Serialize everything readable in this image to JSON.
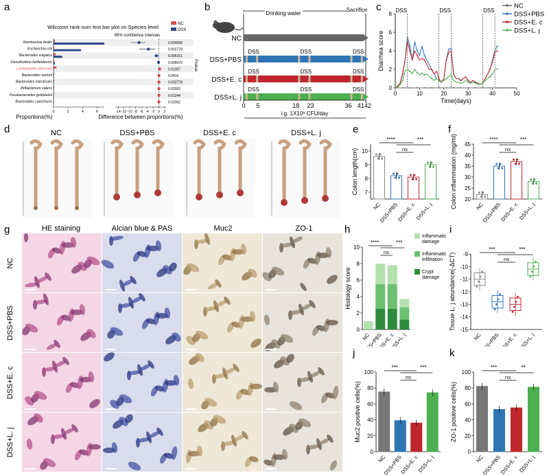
{
  "panel_letters": {
    "a": "a",
    "b": "b",
    "c": "c",
    "d": "d",
    "e": "e",
    "f": "f",
    "g": "g",
    "h": "h",
    "i": "i",
    "j": "j",
    "k": "k"
  },
  "panel_a": {
    "title": "Wilcoxon rank-sum test bar plot on Species level",
    "ci_label": "95% confidence intervals",
    "legend": [
      {
        "name": "NC",
        "color": "#d9534f"
      },
      {
        "name": "DSS",
        "color": "#2e4a87"
      }
    ],
    "xlabel_left": "Proportions(%)",
    "xlabel_right": "Difference between proportions(%)",
    "pvalue_label": "Pvalue",
    "left_ticks": [
      "0",
      "2",
      "4",
      "6"
    ],
    "right_ticks": [
      "-14",
      "-12",
      "-10",
      "-8",
      "-6",
      "-4",
      "-2",
      "0",
      "2"
    ],
    "species": [
      {
        "name": "Romboutsia ilealis",
        "p": "0.004998",
        "nc": 0.2,
        "dss": 7.0,
        "diff": -6.8,
        "lo": -9.5,
        "hi": -4.5,
        "highlight": false
      },
      {
        "name": "Escherichia coli",
        "p": "0.002778",
        "nc": 0.1,
        "dss": 3.8,
        "diff": -3.6,
        "lo": -6.8,
        "hi": -1.2,
        "highlight": false
      },
      {
        "name": "Bacteroides vulgatus",
        "p": "0.006151",
        "nc": 0.3,
        "dss": 1.2,
        "diff": -0.8,
        "lo": -1.6,
        "hi": -0.2,
        "highlight": false
      },
      {
        "name": "Desulfovibrio fairfieldensis",
        "p": "0.005075",
        "nc": 0.1,
        "dss": 0.2,
        "diff": -0.1,
        "lo": -0.3,
        "hi": 0.0,
        "highlight": false
      },
      {
        "name": "Lactobacillus johnsonii",
        "p": "0.01307",
        "nc": 0.4,
        "dss": 0.05,
        "diff": 0.3,
        "lo": 0.1,
        "hi": 0.6,
        "highlight": true
      },
      {
        "name": "Bacteroides sartorii",
        "p": "0.0416",
        "nc": 0.1,
        "dss": 0.05,
        "diff": 0.05,
        "lo": 0.0,
        "hi": 0.2,
        "highlight": false
      },
      {
        "name": "Bacteroides intestinalis",
        "p": "0.002778",
        "nc": 0.1,
        "dss": 0.02,
        "diff": 0.05,
        "lo": 0.0,
        "hi": 0.15,
        "highlight": false
      },
      {
        "name": "Ihtibacterium valens",
        "p": "0.02002",
        "nc": 0.08,
        "dss": 0.02,
        "diff": 0.05,
        "lo": 0.0,
        "hi": 0.12,
        "highlight": false
      },
      {
        "name": "Parabacteroides goldsteinii",
        "p": "0.01244",
        "nc": 0.08,
        "dss": 0.03,
        "diff": 0.04,
        "lo": 0.0,
        "hi": 0.1,
        "highlight": false
      },
      {
        "name": "Bacteroides caecimuris",
        "p": "0.02002",
        "nc": 0.05,
        "dss": 0.01,
        "diff": 0.03,
        "lo": 0.0,
        "hi": 0.08,
        "highlight": false
      }
    ]
  },
  "panel_b": {
    "header_water": "Drinking water",
    "header_sac": "Sacrifice",
    "dss": "DSS",
    "groups": [
      {
        "label": "NC",
        "color": "#666666"
      },
      {
        "label": "DSS+PBS",
        "color": "#2e75b6"
      },
      {
        "label": "DSS+E. c",
        "color": "#c0262d"
      },
      {
        "label": "DSS+L. j",
        "color": "#4caf50"
      }
    ],
    "days": [
      "0",
      "5",
      "18",
      "23",
      "36",
      "41",
      "42"
    ],
    "footer": "i.g. 1X10⁸ CFU/day"
  },
  "chart_data": [
    {
      "type": "line",
      "panel": "c",
      "xlabel": "Time(days)",
      "ylabel": "Diarrhea score",
      "xlim": [
        0,
        50
      ],
      "ylim": [
        0,
        8
      ],
      "xticks": [
        "0",
        "10",
        "20",
        "30",
        "40",
        "50"
      ],
      "yticks": [
        "0",
        "2",
        "4",
        "6",
        "8"
      ],
      "annotations": [
        "DSS",
        "DSS",
        "DSS"
      ],
      "x": [
        0,
        1,
        2,
        3,
        4,
        5,
        6,
        7,
        8,
        9,
        10,
        11,
        12,
        13,
        14,
        15,
        16,
        17,
        18,
        19,
        20,
        21,
        22,
        23,
        24,
        25,
        26,
        27,
        28,
        29,
        30,
        31,
        32,
        33,
        34,
        35,
        36,
        37,
        38,
        39,
        40,
        41,
        42
      ],
      "series": [
        {
          "name": "NC",
          "color": "#666666",
          "values": [
            0,
            0,
            0,
            0,
            0,
            0,
            0,
            0,
            0,
            0,
            0,
            0,
            0,
            0,
            0,
            0,
            0,
            0,
            0,
            0,
            0,
            0,
            0,
            0,
            0,
            0,
            0,
            0,
            0,
            0,
            0,
            0,
            0,
            0,
            0,
            0,
            0,
            0,
            0,
            0,
            0,
            0,
            0
          ]
        },
        {
          "name": "DSS+PBS",
          "color": "#2e75b6",
          "values": [
            0,
            0.2,
            0.5,
            1.5,
            3,
            5.5,
            4.5,
            3,
            5,
            4,
            3.5,
            4.5,
            3.5,
            3,
            2.5,
            2,
            1.5,
            1,
            0.8,
            0.6,
            1,
            3,
            4.2,
            4.2,
            1.5,
            1,
            1,
            0.8,
            1,
            1.2,
            0.8,
            0.6,
            0.8,
            0.6,
            0.5,
            0.4,
            0.5,
            1,
            1.5,
            2,
            3,
            4,
            4.5
          ]
        },
        {
          "name": "DSS+E. c",
          "color": "#c0262d",
          "values": [
            0,
            0.2,
            0.5,
            1.5,
            3,
            5,
            4,
            3,
            4,
            3.5,
            3,
            3.2,
            3,
            2.5,
            2,
            2,
            1.5,
            1.8,
            1,
            0.6,
            1,
            3,
            3.8,
            4,
            1.5,
            1,
            1,
            0.8,
            1,
            1.2,
            0.8,
            0.6,
            0.8,
            0.6,
            0.5,
            0.4,
            0.5,
            1,
            1.5,
            2,
            2.8,
            3.8,
            4
          ]
        },
        {
          "name": "DSS+L. j",
          "color": "#4caf50",
          "values": [
            0,
            0.1,
            0.3,
            0.8,
            1.8,
            2,
            1.8,
            1.5,
            2,
            1.6,
            1.4,
            1.6,
            1.4,
            1.5,
            1.2,
            1,
            0.8,
            1,
            0.8,
            0.6,
            0.8,
            1,
            1.2,
            1.5,
            0.8,
            0.6,
            0.6,
            0.5,
            0.6,
            0.8,
            0.6,
            0.5,
            0.6,
            0.5,
            0.4,
            0.4,
            0.5,
            0.8,
            1,
            1.2,
            1.5,
            2,
            2
          ]
        }
      ]
    },
    {
      "type": "bar",
      "panel": "e",
      "ylabel": "Colon length(cm)",
      "ylim": [
        6.5,
        10.5
      ],
      "yticks": [
        "7",
        "8",
        "9",
        "10"
      ],
      "categories": [
        "NC",
        "DSS+PBS",
        "DSS+E. c",
        "DSS+L. j"
      ],
      "values": [
        9.6,
        8.2,
        8.1,
        9.0
      ],
      "colors": [
        "#888888",
        "#2e75b6",
        "#c0262d",
        "#4caf50"
      ],
      "sig": [
        "****",
        "***",
        "ns"
      ]
    },
    {
      "type": "bar",
      "panel": "f",
      "ylabel": "Colon inflammation (mg/ml)",
      "ylim": [
        20,
        45
      ],
      "yticks": [
        "20",
        "25",
        "30",
        "35",
        "40",
        "45"
      ],
      "categories": [
        "NC",
        "DSS+PBS",
        "DSS+E. c",
        "DSS+L. j"
      ],
      "values": [
        22,
        35,
        37,
        28
      ],
      "colors": [
        "#888888",
        "#2e75b6",
        "#c0262d",
        "#4caf50"
      ],
      "sig": [
        "****",
        "***",
        "ns"
      ]
    },
    {
      "type": "bar",
      "panel": "h",
      "ylabel": "Histology score",
      "ylim": [
        0,
        10
      ],
      "yticks": [
        "0",
        "2",
        "4",
        "6",
        "8",
        "10"
      ],
      "categories": [
        "NC",
        "DSS+PBS",
        "DSS+E. c",
        "DSS+L. j"
      ],
      "series": [
        {
          "name": "Crypt damage",
          "values": [
            0,
            2.5,
            2.5,
            1.2
          ]
        },
        {
          "name": "Inflammation infiltration",
          "values": [
            0,
            3,
            3,
            1.5
          ]
        },
        {
          "name": "Inflammation damage",
          "values": [
            1,
            2.5,
            2.3,
            1
          ]
        }
      ],
      "legend": [
        "Inflammation damage",
        "Inflammation infiltration",
        "Crypt damage"
      ],
      "sig": [
        "****",
        "***",
        "ns"
      ]
    },
    {
      "type": "box",
      "panel": "i",
      "ylabel": "Tissue L. j abundance(-ΔCT)",
      "ylim": [
        -15,
        -9
      ],
      "yticks": [
        "-15",
        "-14",
        "-13",
        "-12",
        "-11",
        "-10",
        "-9"
      ],
      "categories": [
        "NC",
        "DSS+PBS",
        "DSS+E. c",
        "DSS+L. j"
      ],
      "values": [
        -11.0,
        -12.8,
        -13.0,
        -10.2
      ],
      "colors": [
        "#888888",
        "#2e75b6",
        "#c0262d",
        "#4caf50"
      ],
      "sig": [
        "***",
        "***",
        "ns"
      ]
    },
    {
      "type": "bar",
      "panel": "j",
      "ylabel": "Muc2 positive cells(%)",
      "ylim": [
        0,
        100
      ],
      "yticks": [
        "0",
        "20",
        "40",
        "60",
        "80",
        "100"
      ],
      "categories": [
        "NC",
        "DSS+PBS",
        "DSS+E. c",
        "DSS+L. j"
      ],
      "values": [
        75,
        39,
        36,
        74
      ],
      "colors": [
        "#777777",
        "#2e75b6",
        "#c0262d",
        "#4caf50"
      ],
      "sig": [
        "***",
        "***",
        "ns"
      ]
    },
    {
      "type": "bar",
      "panel": "k",
      "ylabel": "ZO-1 positive cells(%)",
      "ylim": [
        0,
        100
      ],
      "yticks": [
        "0",
        "20",
        "40",
        "60",
        "80",
        "100"
      ],
      "categories": [
        "NC",
        "DSS+PBS",
        "DSS+E. c",
        "DSS+L. j"
      ],
      "values": [
        82,
        53,
        55,
        81
      ],
      "colors": [
        "#777777",
        "#2e75b6",
        "#c0262d",
        "#4caf50"
      ],
      "sig": [
        "***",
        "**",
        "ns"
      ]
    }
  ],
  "panel_d": {
    "labels": [
      "NC",
      "DSS+PBS",
      "DSS+E. c",
      "DSS+L. j"
    ]
  },
  "panel_g": {
    "columns": [
      "HE staining",
      "Alcian blue & PAS",
      "Muc2",
      "ZO-1"
    ],
    "rows": [
      "NC",
      "DSS+PBS",
      "DSS+E. c",
      "DSS+L. j"
    ]
  }
}
